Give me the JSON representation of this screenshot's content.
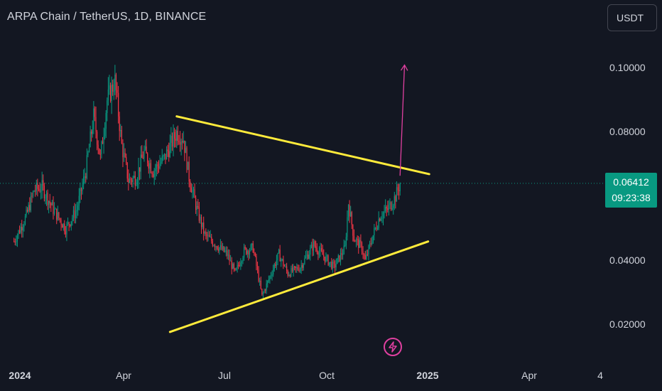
{
  "header": {
    "title": "ARPA Chain / TetherUS, 1D, BINANCE",
    "currency": "USDT"
  },
  "last_price": {
    "value": "0.06412",
    "countdown": "09:23:38"
  },
  "colors": {
    "background": "#131722",
    "up": "#089981",
    "down": "#f23645",
    "trendline": "#ffeb3b",
    "projection": "#e040a0",
    "price_line": "#089981"
  },
  "icons": {
    "alert": "flash-icon"
  },
  "chart_data": {
    "type": "candlestick",
    "title": "ARPA Chain / TetherUS, 1D, BINANCE",
    "y_scale": "linear",
    "ylim": [
      0.009,
      0.12
    ],
    "y_ticks": [
      "0.10000",
      "0.08000",
      "0.04000",
      "0.02000"
    ],
    "x_ticks": [
      {
        "label": "2024",
        "bold": true
      },
      {
        "label": "Apr",
        "bold": false
      },
      {
        "label": "Jul",
        "bold": false
      },
      {
        "label": "Oct",
        "bold": false
      },
      {
        "label": "2025",
        "bold": true
      },
      {
        "label": "Apr",
        "bold": false
      },
      {
        "label": "4",
        "bold": false
      }
    ],
    "price_anchors": [
      [
        "2023-12-28",
        0.046
      ],
      [
        "2024-01-08",
        0.054
      ],
      [
        "2024-01-15",
        0.062
      ],
      [
        "2024-01-22",
        0.063
      ],
      [
        "2024-02-01",
        0.056
      ],
      [
        "2024-02-12",
        0.05
      ],
      [
        "2024-02-22",
        0.056
      ],
      [
        "2024-03-01",
        0.068
      ],
      [
        "2024-03-08",
        0.085
      ],
      [
        "2024-03-14",
        0.072
      ],
      [
        "2024-03-20",
        0.09
      ],
      [
        "2024-03-27",
        0.096
      ],
      [
        "2024-04-02",
        0.076
      ],
      [
        "2024-04-08",
        0.065
      ],
      [
        "2024-04-15",
        0.066
      ],
      [
        "2024-04-22",
        0.074
      ],
      [
        "2024-04-30",
        0.068
      ],
      [
        "2024-05-10",
        0.072
      ],
      [
        "2024-05-21",
        0.08
      ],
      [
        "2024-05-27",
        0.078
      ],
      [
        "2024-06-01",
        0.066
      ],
      [
        "2024-06-08",
        0.056
      ],
      [
        "2024-06-15",
        0.048
      ],
      [
        "2024-06-25",
        0.045
      ],
      [
        "2024-07-05",
        0.042
      ],
      [
        "2024-07-12",
        0.036
      ],
      [
        "2024-07-20",
        0.043
      ],
      [
        "2024-07-28",
        0.044
      ],
      [
        "2024-08-05",
        0.029
      ],
      [
        "2024-08-12",
        0.035
      ],
      [
        "2024-08-20",
        0.042
      ],
      [
        "2024-08-28",
        0.036
      ],
      [
        "2024-09-08",
        0.038
      ],
      [
        "2024-09-20",
        0.045
      ],
      [
        "2024-09-30",
        0.041
      ],
      [
        "2024-10-08",
        0.038
      ],
      [
        "2024-10-18",
        0.044
      ],
      [
        "2024-10-21",
        0.058
      ],
      [
        "2024-10-26",
        0.047
      ],
      [
        "2024-11-02",
        0.044
      ],
      [
        "2024-11-05",
        0.04
      ],
      [
        "2024-11-12",
        0.048
      ],
      [
        "2024-11-18",
        0.054
      ],
      [
        "2024-11-25",
        0.056
      ],
      [
        "2024-12-02",
        0.06
      ],
      [
        "2024-12-06",
        0.0641
      ]
    ],
    "trendlines": [
      {
        "name": "upper",
        "start": [
          "2024-05-21",
          0.085
        ],
        "end": [
          "2025-01-01",
          0.067
        ]
      },
      {
        "name": "lower",
        "start": [
          "2024-05-15",
          0.0178
        ],
        "end": [
          "2024-12-31",
          0.046
        ]
      }
    ],
    "projection_arrow": {
      "start": [
        "2024-12-06",
        0.0665
      ],
      "end": [
        "2024-12-10",
        0.101
      ]
    },
    "last_price_line": 0.06412
  }
}
